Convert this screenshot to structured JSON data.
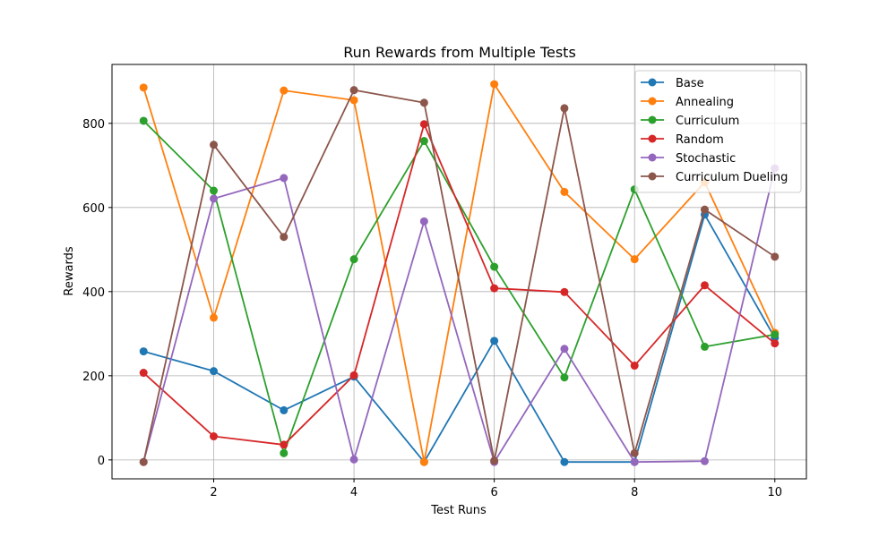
{
  "chart_data": {
    "type": "line",
    "title": "Run Rewards from Multiple Tests",
    "xlabel": "Test Runs",
    "ylabel": "Rewards",
    "xlim": [
      0.55,
      10.45
    ],
    "ylim": [
      -45,
      940
    ],
    "xticks": [
      2,
      4,
      6,
      8,
      10
    ],
    "yticks": [
      0,
      200,
      400,
      600,
      800
    ],
    "grid": true,
    "legend_position": "top-right",
    "x": [
      1,
      2,
      3,
      4,
      5,
      6,
      7,
      8,
      9,
      10
    ],
    "series": [
      {
        "name": "Base",
        "color": "#1f77b4",
        "values": [
          258,
          211,
          118,
          198,
          -5,
          283,
          -5,
          -5,
          583,
          290
        ]
      },
      {
        "name": "Annealing",
        "color": "#ff7f0e",
        "values": [
          885,
          338,
          878,
          855,
          -5,
          893,
          637,
          477,
          660,
          302
        ]
      },
      {
        "name": "Curriculum",
        "color": "#2ca02c",
        "values": [
          806,
          640,
          16,
          477,
          758,
          459,
          196,
          643,
          269,
          298
        ]
      },
      {
        "name": "Random",
        "color": "#d62728",
        "values": [
          207,
          56,
          36,
          201,
          798,
          408,
          399,
          224,
          415,
          277
        ]
      },
      {
        "name": "Stochastic",
        "color": "#9467bd",
        "values": [
          -5,
          621,
          670,
          1,
          567,
          -5,
          264,
          -5,
          -3,
          693
        ]
      },
      {
        "name": "Curriculum Dueling",
        "color": "#8c564b",
        "values": [
          -5,
          749,
          530,
          879,
          849,
          -2,
          836,
          16,
          595,
          483
        ]
      }
    ]
  }
}
